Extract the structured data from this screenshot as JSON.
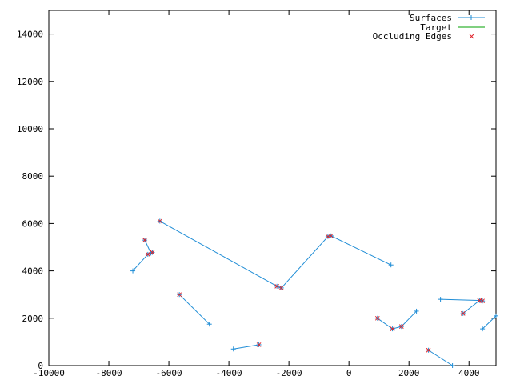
{
  "chart_data": {
    "type": "line",
    "title": "",
    "xlabel": "",
    "ylabel": "",
    "xlim": [
      -10000,
      4900
    ],
    "ylim": [
      0,
      15000
    ],
    "x_ticks": [
      -10000,
      -8000,
      -6000,
      -4000,
      -2000,
      0,
      2000,
      4000
    ],
    "y_ticks": [
      0,
      2000,
      4000,
      6000,
      8000,
      10000,
      12000,
      14000
    ],
    "x_tick_labels": [
      "-10000",
      "-8000",
      "-6000",
      "-4000",
      "-2000",
      "0",
      "2000",
      "4000"
    ],
    "y_tick_labels": [
      "0",
      "2000",
      "4000",
      "6000",
      "8000",
      "10000",
      "12000",
      "14000"
    ],
    "grid": false,
    "legend_position": "top-right",
    "legend": [
      {
        "label": "Surfaces",
        "color": "#1f8dd6",
        "style": "line+plus"
      },
      {
        "label": "Target",
        "color": "#00a000",
        "style": "line"
      },
      {
        "label": "Occluding Edges",
        "color": "#e0242b",
        "style": "cross"
      }
    ],
    "series": [
      {
        "name": "Surfaces",
        "color": "#1f8dd6",
        "segments": [
          [
            [
              -7200,
              4000
            ],
            [
              -6700,
              4700
            ],
            [
              -6550,
              4780
            ]
          ],
          [
            [
              -6800,
              5300
            ],
            [
              -6600,
              4750
            ]
          ],
          [
            [
              -6300,
              6100
            ],
            [
              -2400,
              3350
            ],
            [
              -2250,
              3280
            ],
            [
              -700,
              5450
            ],
            [
              -600,
              5480
            ],
            [
              1400,
              4250
            ]
          ],
          [
            [
              -5650,
              3000
            ],
            [
              -4650,
              1750
            ]
          ],
          [
            [
              -3850,
              700
            ],
            [
              -3000,
              880
            ]
          ],
          [
            [
              950,
              2000
            ],
            [
              1450,
              1550
            ],
            [
              1750,
              1650
            ],
            [
              2250,
              2300
            ]
          ],
          [
            [
              3050,
              2800
            ],
            [
              4400,
              2750
            ],
            [
              4450,
              2730
            ]
          ],
          [
            [
              3800,
              2200
            ],
            [
              4350,
              2750
            ]
          ],
          [
            [
              2650,
              650
            ],
            [
              3450,
              0
            ]
          ],
          [
            [
              4450,
              1550
            ],
            [
              4900,
              2100
            ]
          ]
        ]
      },
      {
        "name": "Occluding Edges",
        "color": "#e0242b",
        "points": [
          [
            -6800,
            5300
          ],
          [
            -6700,
            4700
          ],
          [
            -6550,
            4780
          ],
          [
            -6300,
            6100
          ],
          [
            -5650,
            3000
          ],
          [
            -3000,
            880
          ],
          [
            -2400,
            3350
          ],
          [
            -2250,
            3280
          ],
          [
            -700,
            5450
          ],
          [
            -600,
            5480
          ],
          [
            950,
            2000
          ],
          [
            1450,
            1550
          ],
          [
            1750,
            1650
          ],
          [
            2650,
            650
          ],
          [
            3800,
            2200
          ],
          [
            4350,
            2750
          ],
          [
            4450,
            2730
          ]
        ]
      }
    ]
  }
}
